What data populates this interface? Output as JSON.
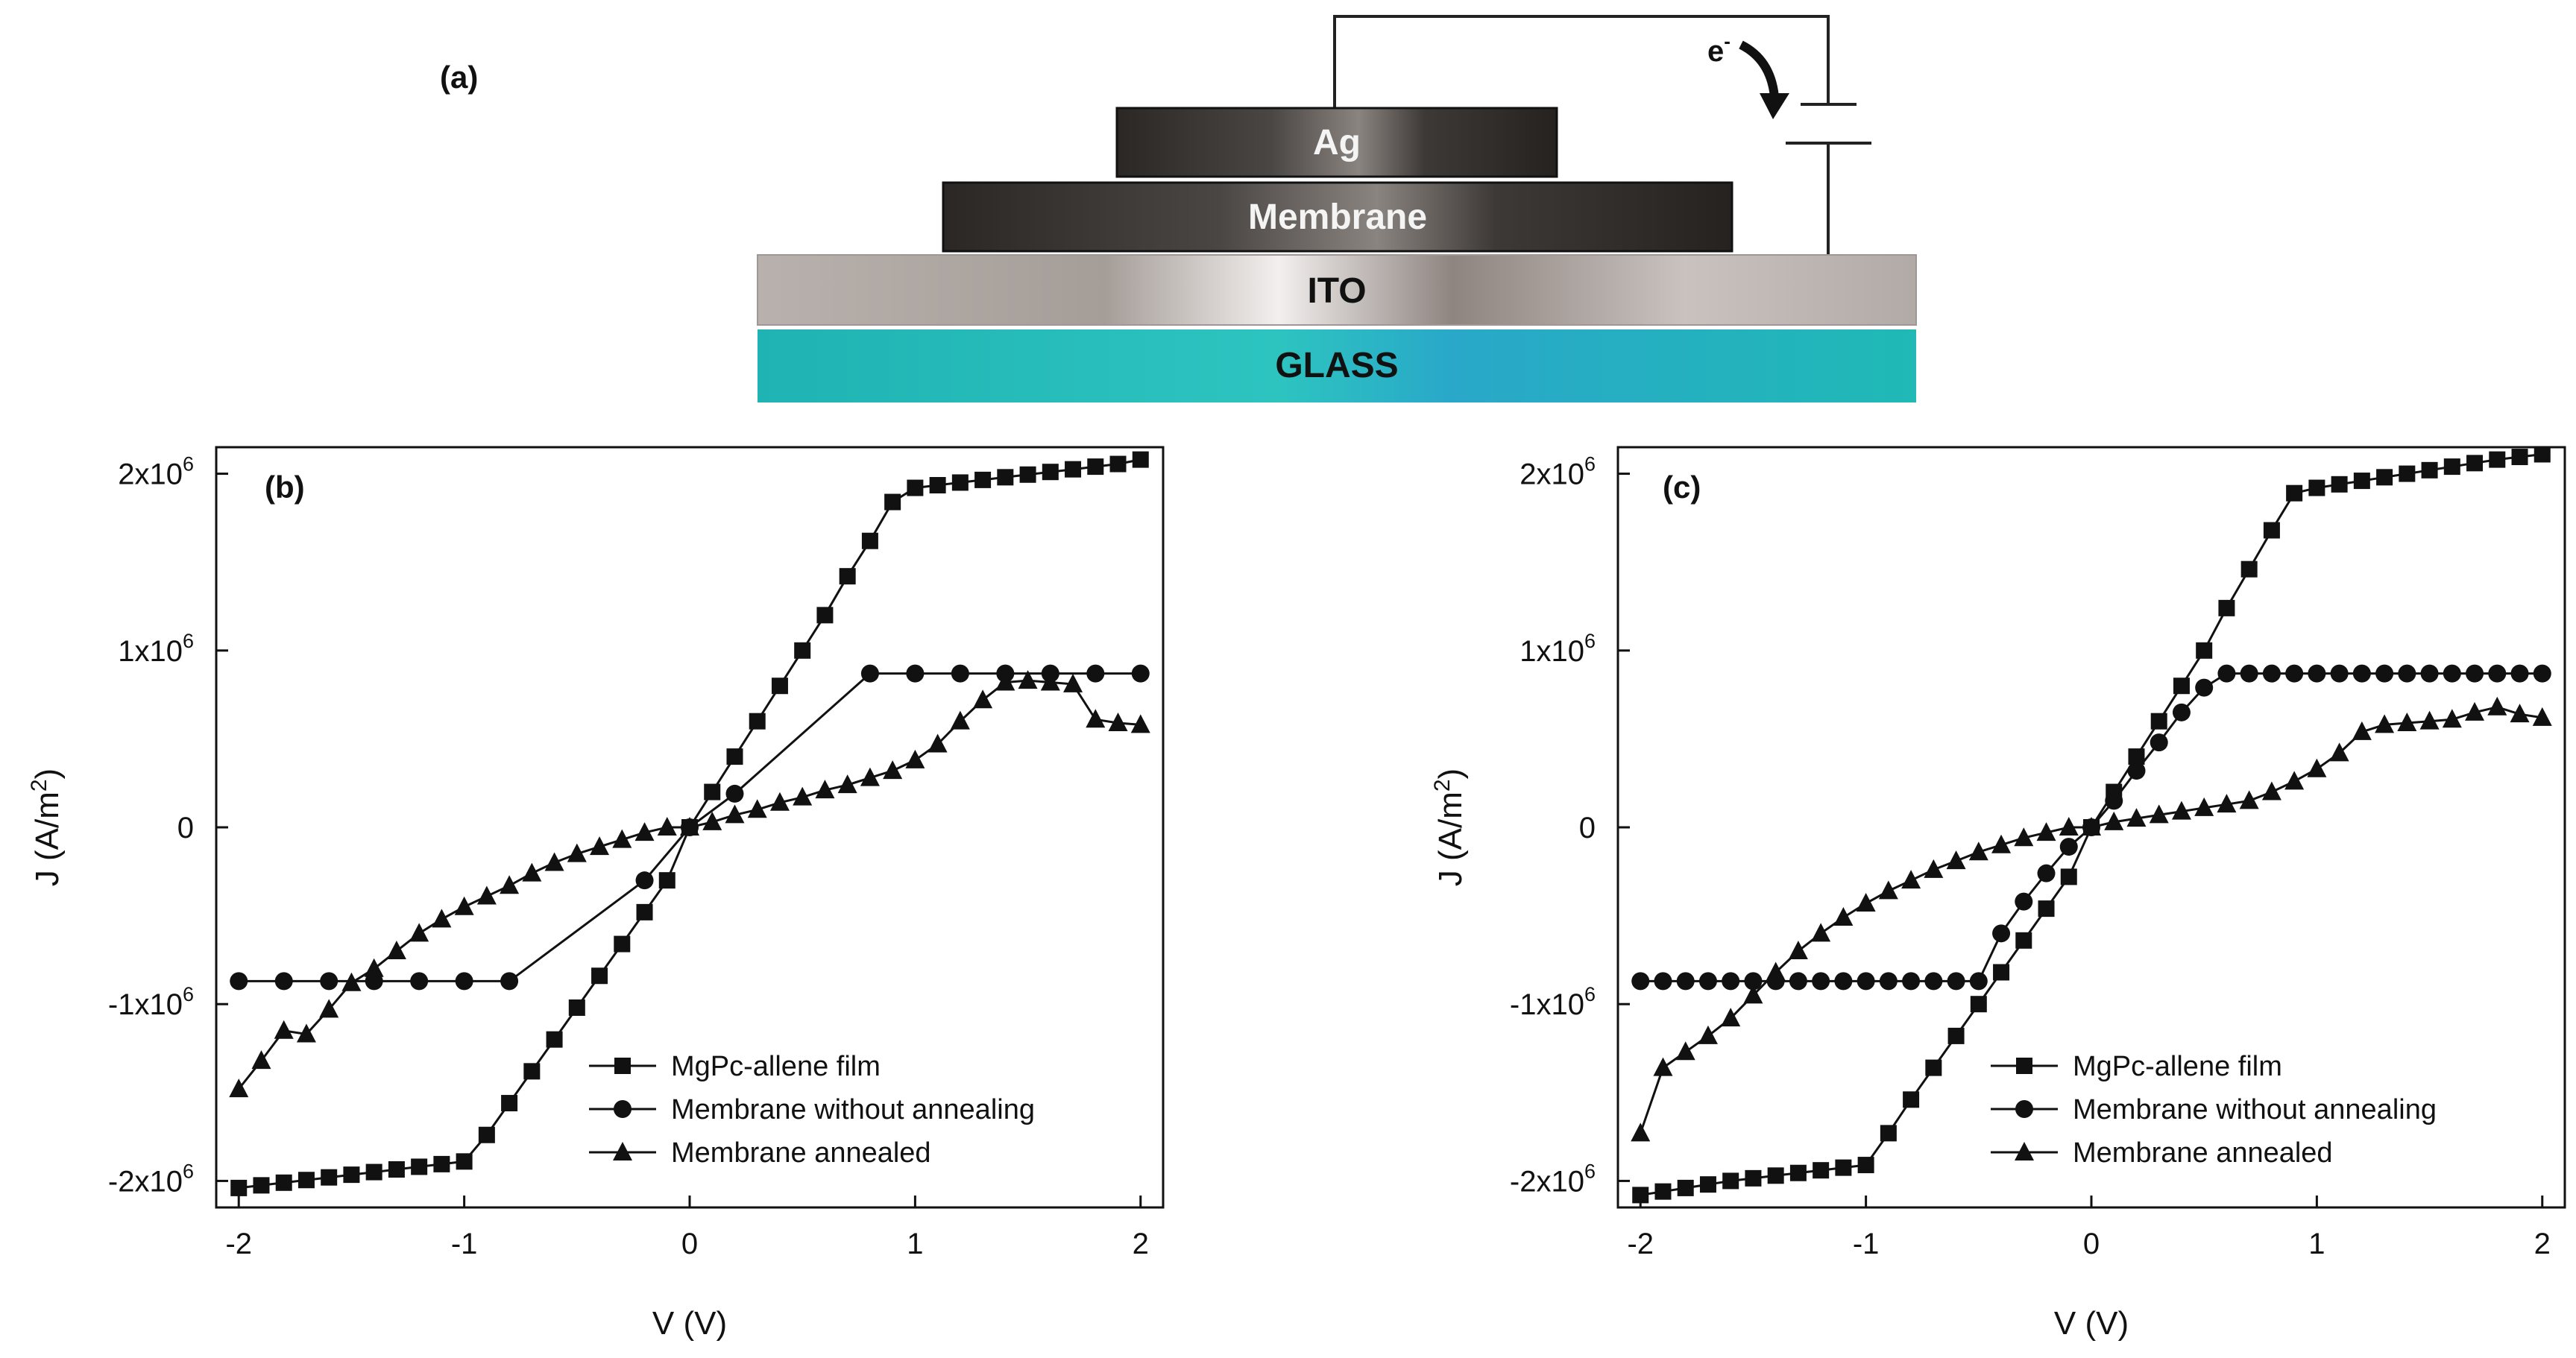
{
  "diagram": {
    "panel_label": "(a)",
    "layers": [
      {
        "name": "ag",
        "label": "Ag"
      },
      {
        "name": "membrane",
        "label": "Membrane"
      },
      {
        "name": "ito",
        "label": "ITO"
      },
      {
        "name": "glass",
        "label": "GLASS"
      }
    ],
    "electron_symbol": "e",
    "electron_superscript": "-"
  },
  "chart_data": [
    {
      "panel": "(b)",
      "type": "line",
      "xlabel": "V (V)",
      "ylabel": "J (A/m2)",
      "xlim": [
        -2.1,
        2.1
      ],
      "ylim": [
        -2150000,
        2150000
      ],
      "xticks": [
        {
          "v": -2,
          "label": "-2"
        },
        {
          "v": -1,
          "label": "-1"
        },
        {
          "v": 0,
          "label": "0"
        },
        {
          "v": 1,
          "label": "1"
        },
        {
          "v": 2,
          "label": "2"
        }
      ],
      "yticks": [
        {
          "v": -2000000,
          "base": "-2x10",
          "exp": "6"
        },
        {
          "v": -1000000,
          "base": "-1x10",
          "exp": "6"
        },
        {
          "v": 0,
          "base": "0",
          "exp": ""
        },
        {
          "v": 1000000,
          "base": "1x10",
          "exp": "6"
        },
        {
          "v": 2000000,
          "base": "2x10",
          "exp": "6"
        }
      ],
      "legend_position": "bottom-right",
      "series": [
        {
          "name": "MgPc-allene film",
          "marker": "square",
          "x": [
            -2,
            -1.9,
            -1.8,
            -1.7,
            -1.6,
            -1.5,
            -1.4,
            -1.3,
            -1.2,
            -1.1,
            -1.0,
            -0.9,
            -0.8,
            -0.7,
            -0.6,
            -0.5,
            -0.4,
            -0.3,
            -0.2,
            -0.1,
            0,
            0.1,
            0.2,
            0.3,
            0.4,
            0.5,
            0.6,
            0.7,
            0.8,
            0.9,
            1.0,
            1.1,
            1.2,
            1.3,
            1.4,
            1.5,
            1.6,
            1.7,
            1.8,
            1.9,
            2.0
          ],
          "y": [
            -2040000,
            -2025000,
            -2010000,
            -1995000,
            -1980000,
            -1965000,
            -1950000,
            -1935000,
            -1920000,
            -1905000,
            -1890000,
            -1740000,
            -1560000,
            -1380000,
            -1200000,
            -1020000,
            -840000,
            -660000,
            -480000,
            -300000,
            0,
            200000,
            400000,
            600000,
            800000,
            1000000,
            1200000,
            1420000,
            1620000,
            1840000,
            1920000,
            1935000,
            1950000,
            1965000,
            1980000,
            1995000,
            2010000,
            2025000,
            2040000,
            2055000,
            2080000
          ]
        },
        {
          "name": "Membrane without annealing",
          "marker": "circle",
          "x": [
            -2,
            -1.8,
            -1.6,
            -1.4,
            -1.2,
            -1.0,
            -0.8,
            -0.2,
            0,
            0.2,
            0.8,
            1.0,
            1.2,
            1.4,
            1.6,
            1.8,
            2.0
          ],
          "y": [
            -870000,
            -870000,
            -870000,
            -870000,
            -870000,
            -870000,
            -870000,
            -300000,
            0,
            190000,
            870000,
            870000,
            870000,
            870000,
            870000,
            870000,
            870000
          ]
        },
        {
          "name": "Membrane annealed",
          "marker": "triangle",
          "x": [
            -2,
            -1.9,
            -1.8,
            -1.7,
            -1.6,
            -1.5,
            -1.4,
            -1.3,
            -1.2,
            -1.1,
            -1.0,
            -0.9,
            -0.8,
            -0.7,
            -0.6,
            -0.5,
            -0.4,
            -0.3,
            -0.2,
            -0.1,
            0,
            0.1,
            0.2,
            0.3,
            0.4,
            0.5,
            0.6,
            0.7,
            0.8,
            0.9,
            1.0,
            1.1,
            1.2,
            1.3,
            1.4,
            1.5,
            1.6,
            1.7,
            1.8,
            1.9,
            2.0
          ],
          "y": [
            -1480000,
            -1320000,
            -1150000,
            -1170000,
            -1030000,
            -880000,
            -800000,
            -700000,
            -600000,
            -520000,
            -450000,
            -390000,
            -330000,
            -260000,
            -200000,
            -150000,
            -110000,
            -70000,
            -30000,
            0,
            0,
            30000,
            70000,
            100000,
            140000,
            170000,
            210000,
            240000,
            280000,
            320000,
            380000,
            470000,
            600000,
            720000,
            820000,
            830000,
            820000,
            810000,
            610000,
            590000,
            580000
          ]
        }
      ]
    },
    {
      "panel": "(c)",
      "type": "line",
      "xlabel": "V (V)",
      "ylabel": "J (A/m2)",
      "xlim": [
        -2.1,
        2.1
      ],
      "ylim": [
        -2150000,
        2150000
      ],
      "xticks": [
        {
          "v": -2,
          "label": "-2"
        },
        {
          "v": -1,
          "label": "-1"
        },
        {
          "v": 0,
          "label": "0"
        },
        {
          "v": 1,
          "label": "1"
        },
        {
          "v": 2,
          "label": "2"
        }
      ],
      "yticks": [
        {
          "v": -2000000,
          "base": "-2x10",
          "exp": "6"
        },
        {
          "v": -1000000,
          "base": "-1x10",
          "exp": "6"
        },
        {
          "v": 0,
          "base": "0",
          "exp": ""
        },
        {
          "v": 1000000,
          "base": "1x10",
          "exp": "6"
        },
        {
          "v": 2000000,
          "base": "2x10",
          "exp": "6"
        }
      ],
      "legend_position": "bottom-right",
      "series": [
        {
          "name": "MgPc-allene film",
          "marker": "square",
          "x": [
            -2,
            -1.9,
            -1.8,
            -1.7,
            -1.6,
            -1.5,
            -1.4,
            -1.3,
            -1.2,
            -1.1,
            -1.0,
            -0.9,
            -0.8,
            -0.7,
            -0.6,
            -0.5,
            -0.4,
            -0.3,
            -0.2,
            -0.1,
            0,
            0.1,
            0.2,
            0.3,
            0.4,
            0.5,
            0.6,
            0.7,
            0.8,
            0.9,
            1.0,
            1.1,
            1.2,
            1.3,
            1.4,
            1.5,
            1.6,
            1.7,
            1.8,
            1.9,
            2.0
          ],
          "y": [
            -2080000,
            -2060000,
            -2040000,
            -2020000,
            -2000000,
            -1985000,
            -1970000,
            -1955000,
            -1940000,
            -1925000,
            -1910000,
            -1730000,
            -1540000,
            -1360000,
            -1180000,
            -1000000,
            -820000,
            -640000,
            -460000,
            -280000,
            0,
            200000,
            400000,
            600000,
            800000,
            1000000,
            1240000,
            1460000,
            1680000,
            1890000,
            1920000,
            1940000,
            1960000,
            1980000,
            2000000,
            2020000,
            2040000,
            2060000,
            2080000,
            2095000,
            2110000
          ]
        },
        {
          "name": "Membrane without annealing",
          "marker": "circle",
          "x": [
            -2,
            -1.9,
            -1.8,
            -1.7,
            -1.6,
            -1.5,
            -1.4,
            -1.3,
            -1.2,
            -1.1,
            -1.0,
            -0.9,
            -0.8,
            -0.7,
            -0.6,
            -0.5,
            -0.4,
            -0.3,
            -0.2,
            -0.1,
            0,
            0.1,
            0.2,
            0.3,
            0.4,
            0.5,
            0.6,
            0.7,
            0.8,
            0.9,
            1.0,
            1.1,
            1.2,
            1.3,
            1.4,
            1.5,
            1.6,
            1.7,
            1.8,
            1.9,
            2.0
          ],
          "y": [
            -870000,
            -870000,
            -870000,
            -870000,
            -870000,
            -870000,
            -870000,
            -870000,
            -870000,
            -870000,
            -870000,
            -870000,
            -870000,
            -870000,
            -870000,
            -870000,
            -600000,
            -420000,
            -260000,
            -110000,
            0,
            150000,
            320000,
            480000,
            650000,
            790000,
            870000,
            870000,
            870000,
            870000,
            870000,
            870000,
            870000,
            870000,
            870000,
            870000,
            870000,
            870000,
            870000,
            870000,
            870000
          ]
        },
        {
          "name": "Membrane annealed",
          "marker": "triangle",
          "x": [
            -2,
            -1.9,
            -1.8,
            -1.7,
            -1.6,
            -1.5,
            -1.4,
            -1.3,
            -1.2,
            -1.1,
            -1.0,
            -0.9,
            -0.8,
            -0.7,
            -0.6,
            -0.5,
            -0.4,
            -0.3,
            -0.2,
            -0.1,
            0,
            0.1,
            0.2,
            0.3,
            0.4,
            0.5,
            0.6,
            0.7,
            0.8,
            0.9,
            1.0,
            1.1,
            1.2,
            1.3,
            1.4,
            1.5,
            1.6,
            1.7,
            1.8,
            1.9,
            2.0
          ],
          "y": [
            -1730000,
            -1360000,
            -1270000,
            -1180000,
            -1080000,
            -950000,
            -820000,
            -700000,
            -600000,
            -510000,
            -430000,
            -360000,
            -300000,
            -240000,
            -190000,
            -140000,
            -100000,
            -60000,
            -30000,
            0,
            0,
            30000,
            50000,
            70000,
            90000,
            110000,
            130000,
            150000,
            200000,
            260000,
            330000,
            420000,
            540000,
            580000,
            590000,
            600000,
            610000,
            650000,
            680000,
            640000,
            620000
          ]
        }
      ]
    }
  ]
}
